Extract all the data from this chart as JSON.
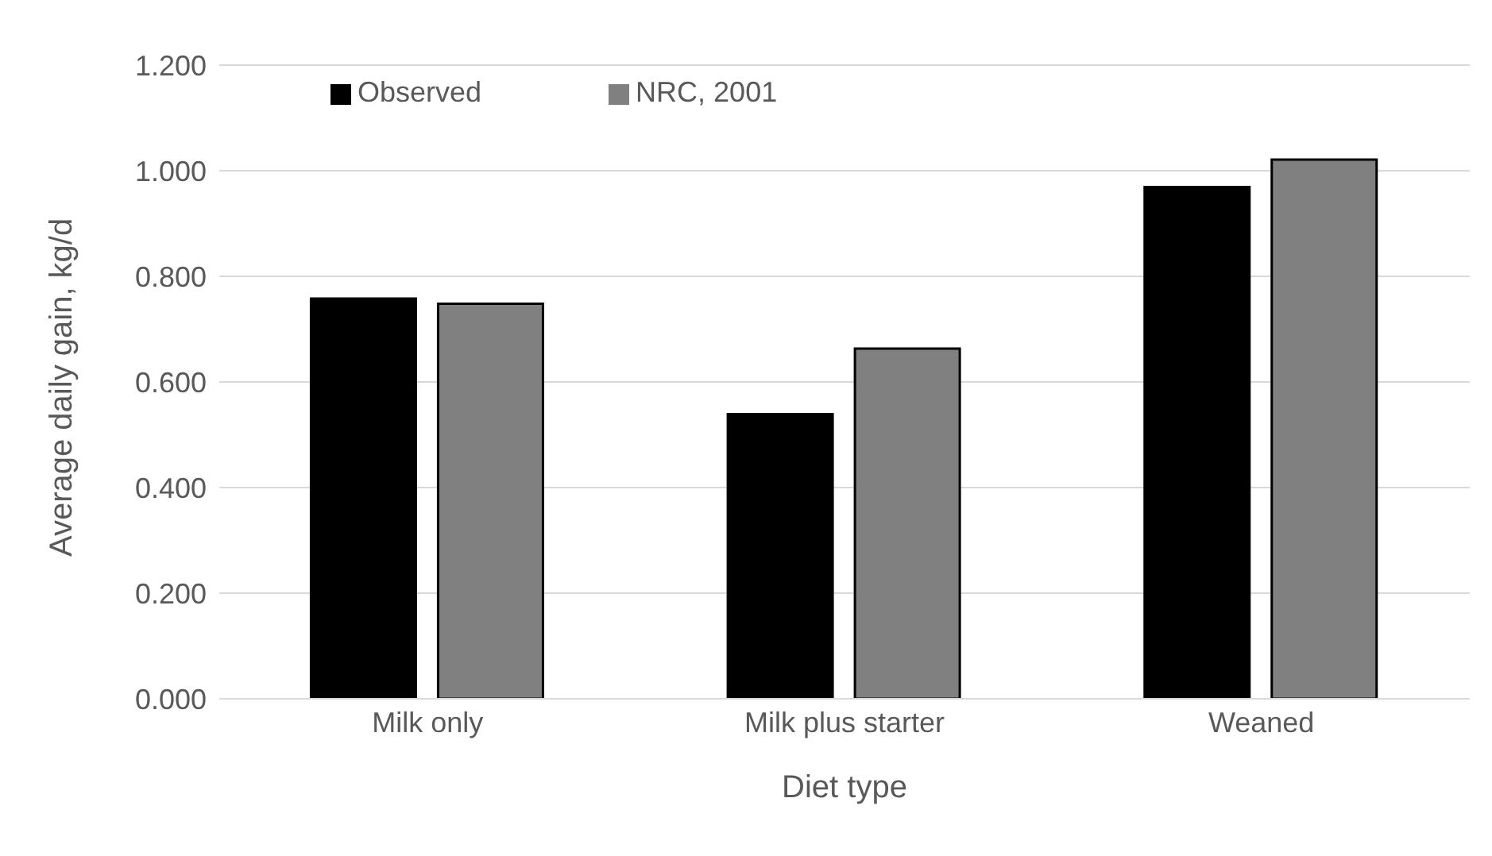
{
  "chart_data": {
    "type": "bar",
    "xlabel": "Diet type",
    "ylabel": "Average daily gain, kg/d",
    "categories": [
      "Milk only",
      "Milk plus starter",
      "Weaned"
    ],
    "series": [
      {
        "name": "Observed",
        "color": "#000000",
        "values": [
          0.758,
          0.539,
          0.969
        ]
      },
      {
        "name": "NRC, 2001",
        "color": "#808080",
        "values": [
          0.748,
          0.663,
          1.021
        ]
      }
    ],
    "ylim": [
      0,
      1.2
    ],
    "yticks": [
      {
        "value": 0,
        "label": "0.000"
      },
      {
        "value": 0.2,
        "label": "0.200"
      },
      {
        "value": 0.4,
        "label": "0.400"
      },
      {
        "value": 0.6,
        "label": "0.600"
      },
      {
        "value": 0.8,
        "label": "0.800"
      },
      {
        "value": 1,
        "label": "1.000"
      },
      {
        "value": 1.2,
        "label": "1.200"
      }
    ],
    "grid": "y",
    "legend": "top left"
  }
}
